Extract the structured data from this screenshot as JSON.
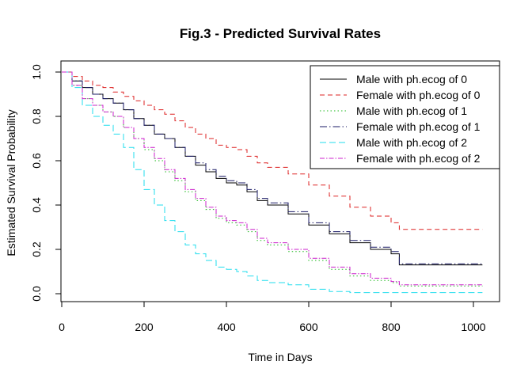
{
  "chart_data": {
    "type": "line",
    "step": true,
    "title": "Fig.3 - Predicted Survival Rates",
    "xlabel": "Time in Days",
    "ylabel": "Estimated Survival Probability",
    "xlim": [
      0,
      1022
    ],
    "ylim": [
      0,
      1
    ],
    "xticks": [
      0,
      200,
      400,
      600,
      800,
      1000
    ],
    "yticks": [
      0.0,
      0.2,
      0.4,
      0.6,
      0.8,
      1.0
    ],
    "xtick_labels": [
      "0",
      "200",
      "400",
      "600",
      "800",
      "1000"
    ],
    "ytick_labels": [
      "0.0",
      "0.2",
      "0.4",
      "0.6",
      "0.8",
      "1.0"
    ],
    "grid": false,
    "legend_position": "top-right",
    "x": [
      0,
      25,
      50,
      75,
      100,
      125,
      150,
      175,
      200,
      225,
      250,
      275,
      300,
      325,
      350,
      375,
      400,
      425,
      450,
      475,
      500,
      550,
      600,
      650,
      700,
      750,
      800,
      820,
      900,
      1022
    ],
    "series": [
      {
        "name": "Male with ph.ecog of 0",
        "color": "#000000",
        "dash": "solid",
        "values": [
          1.0,
          0.96,
          0.93,
          0.9,
          0.88,
          0.86,
          0.83,
          0.79,
          0.76,
          0.72,
          0.7,
          0.66,
          0.62,
          0.58,
          0.55,
          0.52,
          0.5,
          0.49,
          0.46,
          0.42,
          0.4,
          0.36,
          0.31,
          0.27,
          0.23,
          0.2,
          0.18,
          0.13,
          0.13,
          0.13
        ]
      },
      {
        "name": "Female with ph.ecog of 0",
        "color": "#dd2222",
        "dash": "6,4",
        "values": [
          1.0,
          0.98,
          0.96,
          0.94,
          0.93,
          0.91,
          0.89,
          0.87,
          0.85,
          0.83,
          0.81,
          0.78,
          0.75,
          0.72,
          0.7,
          0.67,
          0.66,
          0.65,
          0.62,
          0.59,
          0.57,
          0.54,
          0.49,
          0.44,
          0.39,
          0.35,
          0.32,
          0.29,
          0.29,
          0.29
        ]
      },
      {
        "name": "Male with ph.ecog of 1",
        "color": "#22bb22",
        "dash": "1.5,3",
        "values": [
          1.0,
          0.94,
          0.88,
          0.85,
          0.82,
          0.8,
          0.75,
          0.7,
          0.65,
          0.6,
          0.55,
          0.51,
          0.46,
          0.42,
          0.38,
          0.34,
          0.32,
          0.31,
          0.28,
          0.24,
          0.22,
          0.19,
          0.15,
          0.11,
          0.08,
          0.06,
          0.05,
          0.035,
          0.035,
          0.035
        ]
      },
      {
        "name": "Female with ph.ecog of 1",
        "color": "#1a1a66",
        "dash": "9,3,1.5,3",
        "values": [
          1.0,
          0.96,
          0.93,
          0.9,
          0.88,
          0.86,
          0.83,
          0.79,
          0.76,
          0.72,
          0.7,
          0.66,
          0.62,
          0.59,
          0.56,
          0.53,
          0.51,
          0.5,
          0.47,
          0.43,
          0.41,
          0.37,
          0.32,
          0.28,
          0.24,
          0.21,
          0.19,
          0.135,
          0.135,
          0.135
        ]
      },
      {
        "name": "Male with ph.ecog of 2",
        "color": "#22ddee",
        "dash": "8,4",
        "values": [
          1.0,
          0.93,
          0.85,
          0.8,
          0.76,
          0.72,
          0.66,
          0.56,
          0.47,
          0.4,
          0.33,
          0.28,
          0.22,
          0.18,
          0.15,
          0.12,
          0.11,
          0.1,
          0.08,
          0.06,
          0.05,
          0.04,
          0.02,
          0.01,
          0.005,
          0.005,
          0.005,
          0.005,
          0.005,
          0.005
        ]
      },
      {
        "name": "Female with ph.ecog of 2",
        "color": "#cc22cc",
        "dash": "6,2,1.5,2",
        "values": [
          1.0,
          0.94,
          0.88,
          0.85,
          0.82,
          0.8,
          0.75,
          0.7,
          0.66,
          0.61,
          0.56,
          0.52,
          0.47,
          0.43,
          0.39,
          0.35,
          0.33,
          0.32,
          0.29,
          0.25,
          0.23,
          0.2,
          0.16,
          0.12,
          0.09,
          0.07,
          0.055,
          0.04,
          0.04,
          0.04
        ]
      }
    ]
  }
}
